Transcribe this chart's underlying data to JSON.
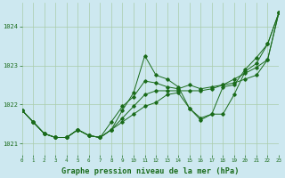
{
  "title": "Graphe pression niveau de la mer (hPa)",
  "background_color": "#cde8f0",
  "grid_color": "#aaccaa",
  "line_color": "#1a6b1a",
  "xlim": [
    0,
    23
  ],
  "ylim": [
    1020.7,
    1024.6
  ],
  "yticks": [
    1021,
    1022,
    1023,
    1024
  ],
  "xticks": [
    0,
    1,
    2,
    3,
    4,
    5,
    6,
    7,
    8,
    9,
    10,
    11,
    12,
    13,
    14,
    15,
    16,
    17,
    18,
    19,
    20,
    21,
    22,
    23
  ],
  "x_values": [
    0,
    1,
    2,
    3,
    4,
    5,
    6,
    7,
    8,
    9,
    10,
    11,
    12,
    13,
    14,
    15,
    16,
    17,
    18,
    19,
    20,
    21,
    22,
    23
  ],
  "line1_y": [
    1021.85,
    1021.55,
    1021.25,
    1021.15,
    1021.15,
    1021.35,
    1021.2,
    1021.15,
    1021.35,
    1021.85,
    1022.3,
    1023.25,
    1022.75,
    1022.65,
    1022.45,
    1021.9,
    1021.6,
    1021.75,
    1021.75,
    1022.25,
    1022.85,
    1023.05,
    1023.55,
    1024.35
  ],
  "line2_y": [
    1021.85,
    1021.55,
    1021.25,
    1021.15,
    1021.15,
    1021.35,
    1021.2,
    1021.15,
    1021.55,
    1021.95,
    1022.2,
    1022.6,
    1022.55,
    1022.45,
    1022.4,
    1022.5,
    1022.4,
    1022.45,
    1022.5,
    1022.55,
    1022.65,
    1022.75,
    1023.15,
    1024.35
  ],
  "line3_y": [
    1021.85,
    1021.55,
    1021.25,
    1021.15,
    1021.15,
    1021.35,
    1021.2,
    1021.15,
    1021.35,
    1021.65,
    1021.95,
    1022.25,
    1022.35,
    1022.35,
    1022.35,
    1022.35,
    1022.35,
    1022.4,
    1022.5,
    1022.65,
    1022.8,
    1022.95,
    1023.15,
    1024.35
  ],
  "line4_y": [
    1021.85,
    1021.55,
    1021.25,
    1021.15,
    1021.15,
    1021.35,
    1021.2,
    1021.15,
    1021.35,
    1021.55,
    1021.75,
    1021.95,
    1022.05,
    1022.25,
    1022.3,
    1021.9,
    1021.65,
    1021.75,
    1022.45,
    1022.5,
    1022.9,
    1023.2,
    1023.55,
    1024.35
  ]
}
